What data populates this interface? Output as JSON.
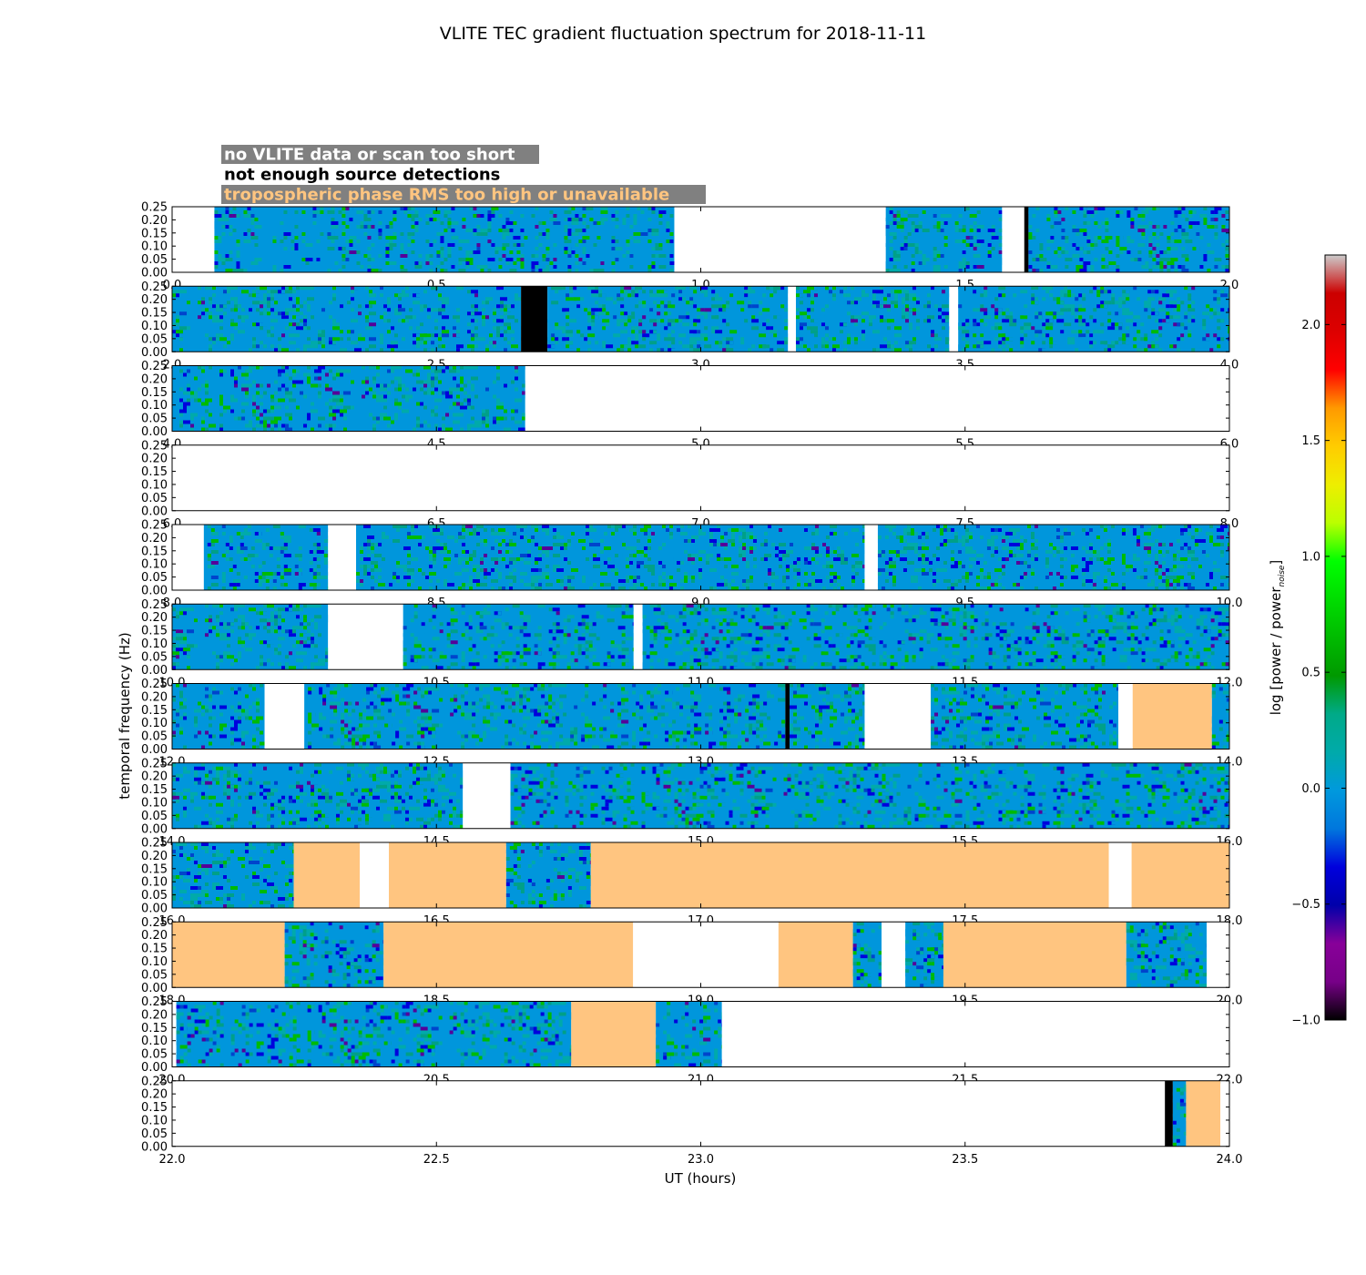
{
  "chart_data": {
    "type": "heatmap",
    "title": "VLITE TEC gradient fluctuation spectrum for 2018-11-11",
    "xlabel": "UT (hours)",
    "ylabel": "temporal frequency (Hz)",
    "colorbar": {
      "label": "log [power / power",
      "label_sub": "noise",
      "label_tail": "]",
      "range": [
        -1.0,
        2.3
      ],
      "ticks": [
        "−1.0",
        "−0.5",
        "0.0",
        "0.5",
        "1.0",
        "1.5",
        "2.0"
      ],
      "tick_values": [
        -1.0,
        -0.5,
        0.0,
        0.5,
        1.0,
        1.5,
        2.0
      ],
      "colormap": "nipy_spectral"
    },
    "legend": [
      {
        "label": "no VLITE data or scan too short",
        "box_color": "#808080",
        "text_color": "#ffffff"
      },
      {
        "label": "not enough source detections",
        "box_color": "#ffffff",
        "text_color": "#000000"
      },
      {
        "label": "tropospheric phase RMS too high or unavailable",
        "box_color": "#808080",
        "text_color": "#ffc580"
      }
    ],
    "y_range": [
      0,
      0.25
    ],
    "y_ticks": [
      "0.00",
      "0.05",
      "0.10",
      "0.15",
      "0.20",
      "0.25"
    ],
    "status_colors": {
      "data": "#0096dc",
      "no_detections": "#000000",
      "tropo": "#ffc580",
      "nodata": "#ffffff"
    },
    "rows": [
      {
        "range": [
          0,
          2
        ],
        "ticks": [
          "0.0",
          "0.5",
          "1.0",
          "1.5",
          "2.0"
        ],
        "segments": [
          [
            "nodata",
            0,
            0.08
          ],
          [
            "data",
            0.08,
            0.95
          ],
          [
            "nodata",
            0.95,
            1.35
          ],
          [
            "data",
            1.35,
            1.57
          ],
          [
            "nodata",
            1.57,
            1.612
          ],
          [
            "no_detections",
            1.612,
            1.62
          ],
          [
            "data",
            1.62,
            2.0
          ]
        ]
      },
      {
        "range": [
          2,
          4
        ],
        "ticks": [
          "2.0",
          "2.5",
          "3.0",
          "3.5",
          "4.0"
        ],
        "segments": [
          [
            "data",
            2.0,
            2.66
          ],
          [
            "no_detections",
            2.66,
            2.71
          ],
          [
            "data",
            2.71,
            3.165
          ],
          [
            "nodata",
            3.165,
            3.18
          ],
          [
            "data",
            3.18,
            3.47
          ],
          [
            "nodata",
            3.47,
            3.487
          ],
          [
            "data",
            3.487,
            4.0
          ]
        ]
      },
      {
        "range": [
          4,
          6
        ],
        "ticks": [
          "4.0",
          "4.5",
          "5.0",
          "5.5",
          "6.0"
        ],
        "segments": [
          [
            "data",
            4.0,
            4.668
          ],
          [
            "nodata",
            4.668,
            6.0
          ]
        ]
      },
      {
        "range": [
          6,
          8
        ],
        "ticks": [
          "6.0",
          "6.5",
          "7.0",
          "7.5",
          "8.0"
        ],
        "segments": [
          [
            "nodata",
            6.0,
            8.0
          ]
        ]
      },
      {
        "range": [
          8,
          10
        ],
        "ticks": [
          "8.0",
          "8.5",
          "9.0",
          "9.5",
          "10.0"
        ],
        "segments": [
          [
            "nodata",
            8.0,
            8.06
          ],
          [
            "data",
            8.06,
            8.295
          ],
          [
            "nodata",
            8.295,
            8.348
          ],
          [
            "data",
            8.348,
            9.31
          ],
          [
            "nodata",
            9.31,
            9.335
          ],
          [
            "data",
            9.335,
            10.0
          ]
        ]
      },
      {
        "range": [
          10,
          12
        ],
        "ticks": [
          "10.0",
          "10.5",
          "11.0",
          "11.5",
          "12.0"
        ],
        "segments": [
          [
            "data",
            10.0,
            10.295
          ],
          [
            "nodata",
            10.295,
            10.437
          ],
          [
            "data",
            10.437,
            10.873
          ],
          [
            "nodata",
            10.873,
            10.89
          ],
          [
            "data",
            10.89,
            12.0
          ]
        ]
      },
      {
        "range": [
          12,
          14
        ],
        "ticks": [
          "12.0",
          "12.5",
          "13.0",
          "13.5",
          "14.0"
        ],
        "segments": [
          [
            "data",
            12.0,
            12.175
          ],
          [
            "nodata",
            12.175,
            12.25
          ],
          [
            "data",
            12.25,
            13.16
          ],
          [
            "no_detections",
            13.16,
            13.168
          ],
          [
            "data",
            13.168,
            13.31
          ],
          [
            "nodata",
            13.31,
            13.435
          ],
          [
            "data",
            13.435,
            13.79
          ],
          [
            "nodata",
            13.79,
            13.817
          ],
          [
            "tropo",
            13.817,
            13.967
          ],
          [
            "data",
            13.967,
            14.0
          ]
        ]
      },
      {
        "range": [
          14,
          16
        ],
        "ticks": [
          "14.0",
          "14.5",
          "15.0",
          "15.5",
          "16.0"
        ],
        "segments": [
          [
            "data",
            14.0,
            14.55
          ],
          [
            "nodata",
            14.55,
            14.64
          ],
          [
            "data",
            14.64,
            16.0
          ]
        ]
      },
      {
        "range": [
          16,
          18
        ],
        "ticks": [
          "16.0",
          "16.5",
          "17.0",
          "17.5",
          "18.0"
        ],
        "segments": [
          [
            "data",
            16.0,
            16.23
          ],
          [
            "tropo",
            16.23,
            16.355
          ],
          [
            "nodata",
            16.355,
            16.41
          ],
          [
            "tropo",
            16.41,
            16.632
          ],
          [
            "data",
            16.632,
            16.792
          ],
          [
            "tropo",
            16.792,
            17.772
          ],
          [
            "nodata",
            17.772,
            17.815
          ],
          [
            "tropo",
            17.815,
            18.0
          ]
        ]
      },
      {
        "range": [
          18,
          20
        ],
        "ticks": [
          "18.0",
          "18.5",
          "19.0",
          "19.5",
          "20.0"
        ],
        "segments": [
          [
            "tropo",
            18.0,
            18.213
          ],
          [
            "data",
            18.213,
            18.4
          ],
          [
            "tropo",
            18.4,
            18.872
          ],
          [
            "nodata",
            18.872,
            19.147
          ],
          [
            "tropo",
            19.147,
            19.288
          ],
          [
            "data",
            19.288,
            19.342
          ],
          [
            "nodata",
            19.342,
            19.387
          ],
          [
            "data",
            19.387,
            19.459
          ],
          [
            "tropo",
            19.459,
            19.805
          ],
          [
            "data",
            19.805,
            19.957
          ],
          [
            "nodata",
            19.957,
            20.0
          ]
        ]
      },
      {
        "range": [
          20,
          22
        ],
        "ticks": [
          "20.0",
          "20.5",
          "21.0",
          "21.5",
          "22.0"
        ],
        "segments": [
          [
            "nodata",
            20.0,
            20.008
          ],
          [
            "data",
            20.008,
            20.755
          ],
          [
            "tropo",
            20.755,
            20.915
          ],
          [
            "data",
            20.915,
            21.04
          ],
          [
            "nodata",
            21.04,
            22.0
          ]
        ]
      },
      {
        "range": [
          22,
          24
        ],
        "ticks": [
          "22.0",
          "22.5",
          "23.0",
          "23.5",
          "24.0"
        ],
        "segments": [
          [
            "nodata",
            22.0,
            23.878
          ],
          [
            "no_detections",
            23.878,
            23.893
          ],
          [
            "data",
            23.893,
            23.918
          ],
          [
            "tropo",
            23.918,
            23.983
          ],
          [
            "nodata",
            23.983,
            24.0
          ]
        ]
      }
    ]
  }
}
